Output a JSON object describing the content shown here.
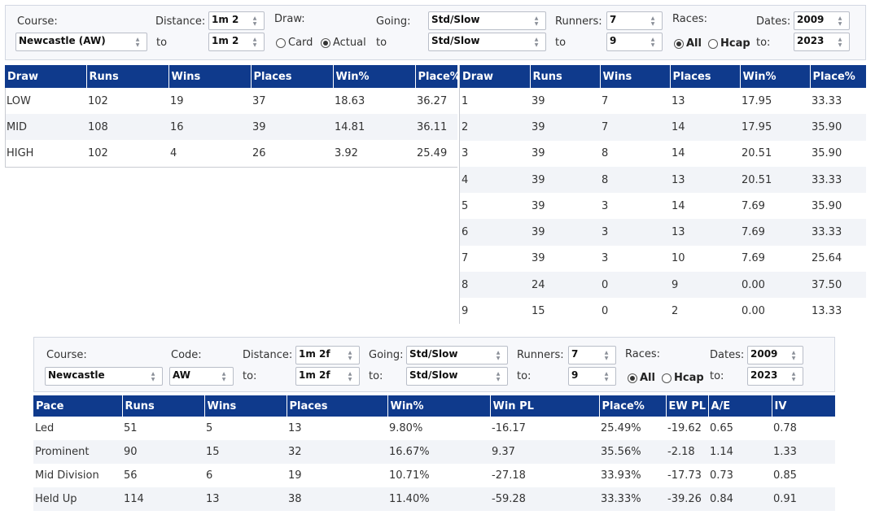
{
  "top_filter": {
    "course_label": "Course:",
    "course_value": "Newcastle (AW)",
    "distance_label": "Distance:",
    "distance_from": "1m 2",
    "distance_to": "1m 2",
    "to_label": "to",
    "draw_label": "Draw:",
    "draw_card": "Card",
    "draw_actual": "Actual",
    "going_label": "Going:",
    "going_from": "Std/Slow",
    "going_to": "Std/Slow",
    "runners_label": "Runners:",
    "runners_from": "7",
    "runners_to": "9",
    "races_label": "Races:",
    "races_all": "All",
    "races_hcap": "Hcap",
    "dates_label": "Dates:",
    "dates_from": "2009",
    "dates_to_label": "to:",
    "dates_to": "2023"
  },
  "draw_group_table": {
    "headers": [
      "Draw",
      "Runs",
      "Wins",
      "Places",
      "Win%",
      "Place%"
    ],
    "rows": [
      [
        "LOW",
        "102",
        "19",
        "37",
        "18.63",
        "36.27"
      ],
      [
        "MID",
        "108",
        "16",
        "39",
        "14.81",
        "36.11"
      ],
      [
        "HIGH",
        "102",
        "4",
        "26",
        "3.92",
        "25.49"
      ]
    ]
  },
  "draw_stall_table": {
    "headers": [
      "Draw",
      "Runs",
      "Wins",
      "Places",
      "Win%",
      "Place%"
    ],
    "rows": [
      [
        "1",
        "39",
        "7",
        "13",
        "17.95",
        "33.33"
      ],
      [
        "2",
        "39",
        "7",
        "14",
        "17.95",
        "35.90"
      ],
      [
        "3",
        "39",
        "8",
        "14",
        "20.51",
        "35.90"
      ],
      [
        "4",
        "39",
        "8",
        "13",
        "20.51",
        "33.33"
      ],
      [
        "5",
        "39",
        "3",
        "14",
        "7.69",
        "35.90"
      ],
      [
        "6",
        "39",
        "3",
        "13",
        "7.69",
        "33.33"
      ],
      [
        "7",
        "39",
        "3",
        "10",
        "7.69",
        "25.64"
      ],
      [
        "8",
        "24",
        "0",
        "9",
        "0.00",
        "37.50"
      ],
      [
        "9",
        "15",
        "0",
        "2",
        "0.00",
        "13.33"
      ]
    ]
  },
  "bottom_filter": {
    "course_label": "Course:",
    "course_value": "Newcastle",
    "code_label": "Code:",
    "code_value": "AW",
    "distance_label": "Distance:",
    "distance_from": "1m 2f",
    "distance_to": "1m 2f",
    "to_label": "to:",
    "going_label": "Going:",
    "going_from": "Std/Slow",
    "going_to": "Std/Slow",
    "runners_label": "Runners:",
    "runners_from": "7",
    "runners_to": "9",
    "races_label": "Races:",
    "races_all": "All",
    "races_hcap": "Hcap",
    "dates_label": "Dates:",
    "dates_from": "2009",
    "dates_to": "2023"
  },
  "pace_table": {
    "headers": [
      "Pace",
      "Runs",
      "Wins",
      "Places",
      "Win%",
      "Win PL",
      "Place%",
      "EW PL",
      "A/E",
      "IV"
    ],
    "rows": [
      [
        "Led",
        "51",
        "5",
        "13",
        "9.80%",
        "-16.17",
        "25.49%",
        "-19.62",
        "0.65",
        "0.78"
      ],
      [
        "Prominent",
        "90",
        "15",
        "32",
        "16.67%",
        "9.37",
        "35.56%",
        "-2.18",
        "1.14",
        "1.33"
      ],
      [
        "Mid Division",
        "56",
        "6",
        "19",
        "10.71%",
        "-27.18",
        "33.93%",
        "-17.73",
        "0.73",
        "0.85"
      ],
      [
        "Held Up",
        "114",
        "13",
        "38",
        "11.40%",
        "-59.28",
        "33.33%",
        "-39.26",
        "0.84",
        "0.91"
      ]
    ]
  },
  "colors": {
    "header_bg": "#0f3a8c",
    "negative": "#e23c3c",
    "alt_row": "#f2f4f8"
  }
}
